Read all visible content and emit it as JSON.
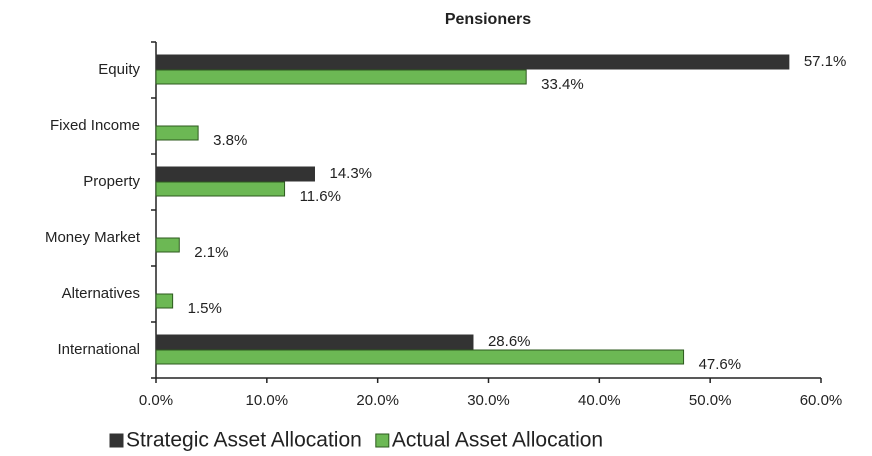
{
  "chart_data": {
    "type": "hbar",
    "title": "Pensioners",
    "categories": [
      "Equity",
      "Fixed Income",
      "Property",
      "Money Market",
      "Alternatives",
      "International"
    ],
    "series": [
      {
        "name": "Strategic Asset Allocation",
        "color": "#333333",
        "values": [
          57.1,
          null,
          14.3,
          null,
          null,
          28.6
        ],
        "value_labels": [
          "57.1%",
          null,
          "14.3%",
          null,
          null,
          "28.6%"
        ]
      },
      {
        "name": "Actual Asset Allocation",
        "color": "#6cb854",
        "values": [
          33.4,
          3.8,
          11.6,
          2.1,
          1.5,
          47.6
        ],
        "value_labels": [
          "33.4%",
          "3.8%",
          "11.6%",
          "2.1%",
          "1.5%",
          "47.6%"
        ]
      }
    ],
    "xlim": [
      0,
      60
    ],
    "xticks": [
      {
        "value": 0,
        "label": "0.0%"
      },
      {
        "value": 10,
        "label": "10.0%"
      },
      {
        "value": 20,
        "label": "20.0%"
      },
      {
        "value": 30,
        "label": "30.0%"
      },
      {
        "value": 40,
        "label": "40.0%"
      },
      {
        "value": 50,
        "label": "50.0%"
      },
      {
        "value": 60,
        "label": "60.0%"
      }
    ],
    "grid": false,
    "legend": "bottom"
  }
}
